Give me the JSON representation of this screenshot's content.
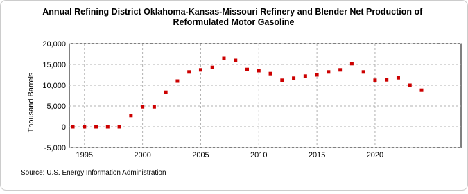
{
  "chart_data": {
    "type": "scatter",
    "title": "Annual Refining District Oklahoma-Kansas-Missouri Refinery and Blender Net Production of Reformulated Motor Gasoline",
    "y_label": "Thousand Barrels",
    "source": "Source: U.S. Energy Information Administration",
    "x": [
      1994,
      1995,
      1996,
      1997,
      1998,
      1999,
      2000,
      2001,
      2002,
      2003,
      2004,
      2005,
      2006,
      2007,
      2008,
      2009,
      2010,
      2011,
      2012,
      2013,
      2014,
      2015,
      2016,
      2017,
      2018,
      2019,
      2020,
      2021,
      2022,
      2023,
      2024
    ],
    "series": [
      {
        "name": "Refinery and Blender Net Production",
        "color": "#cc0000",
        "values": [
          0,
          0,
          0,
          0,
          0,
          2700,
          4800,
          4800,
          8300,
          11000,
          13200,
          13700,
          14300,
          16500,
          16000,
          13800,
          13500,
          12800,
          11200,
          11700,
          12200,
          12500,
          13200,
          13700,
          15200,
          13200,
          11200,
          11300,
          11800,
          10000,
          8800
        ]
      }
    ],
    "xlim": [
      1993.7,
      2027.4
    ],
    "xticks": [
      1995,
      2000,
      2005,
      2010,
      2015,
      2020
    ],
    "ylim": [
      -5000,
      20000
    ],
    "yticks": [
      {
        "value": -5000,
        "label": "-5,000"
      },
      0,
      {
        "value": 5000,
        "label": "5,000"
      },
      {
        "value": 10000,
        "label": "10,000"
      },
      {
        "value": 15000,
        "label": "15,000"
      },
      {
        "value": 20000,
        "label": "20,000"
      }
    ],
    "grid": true
  }
}
